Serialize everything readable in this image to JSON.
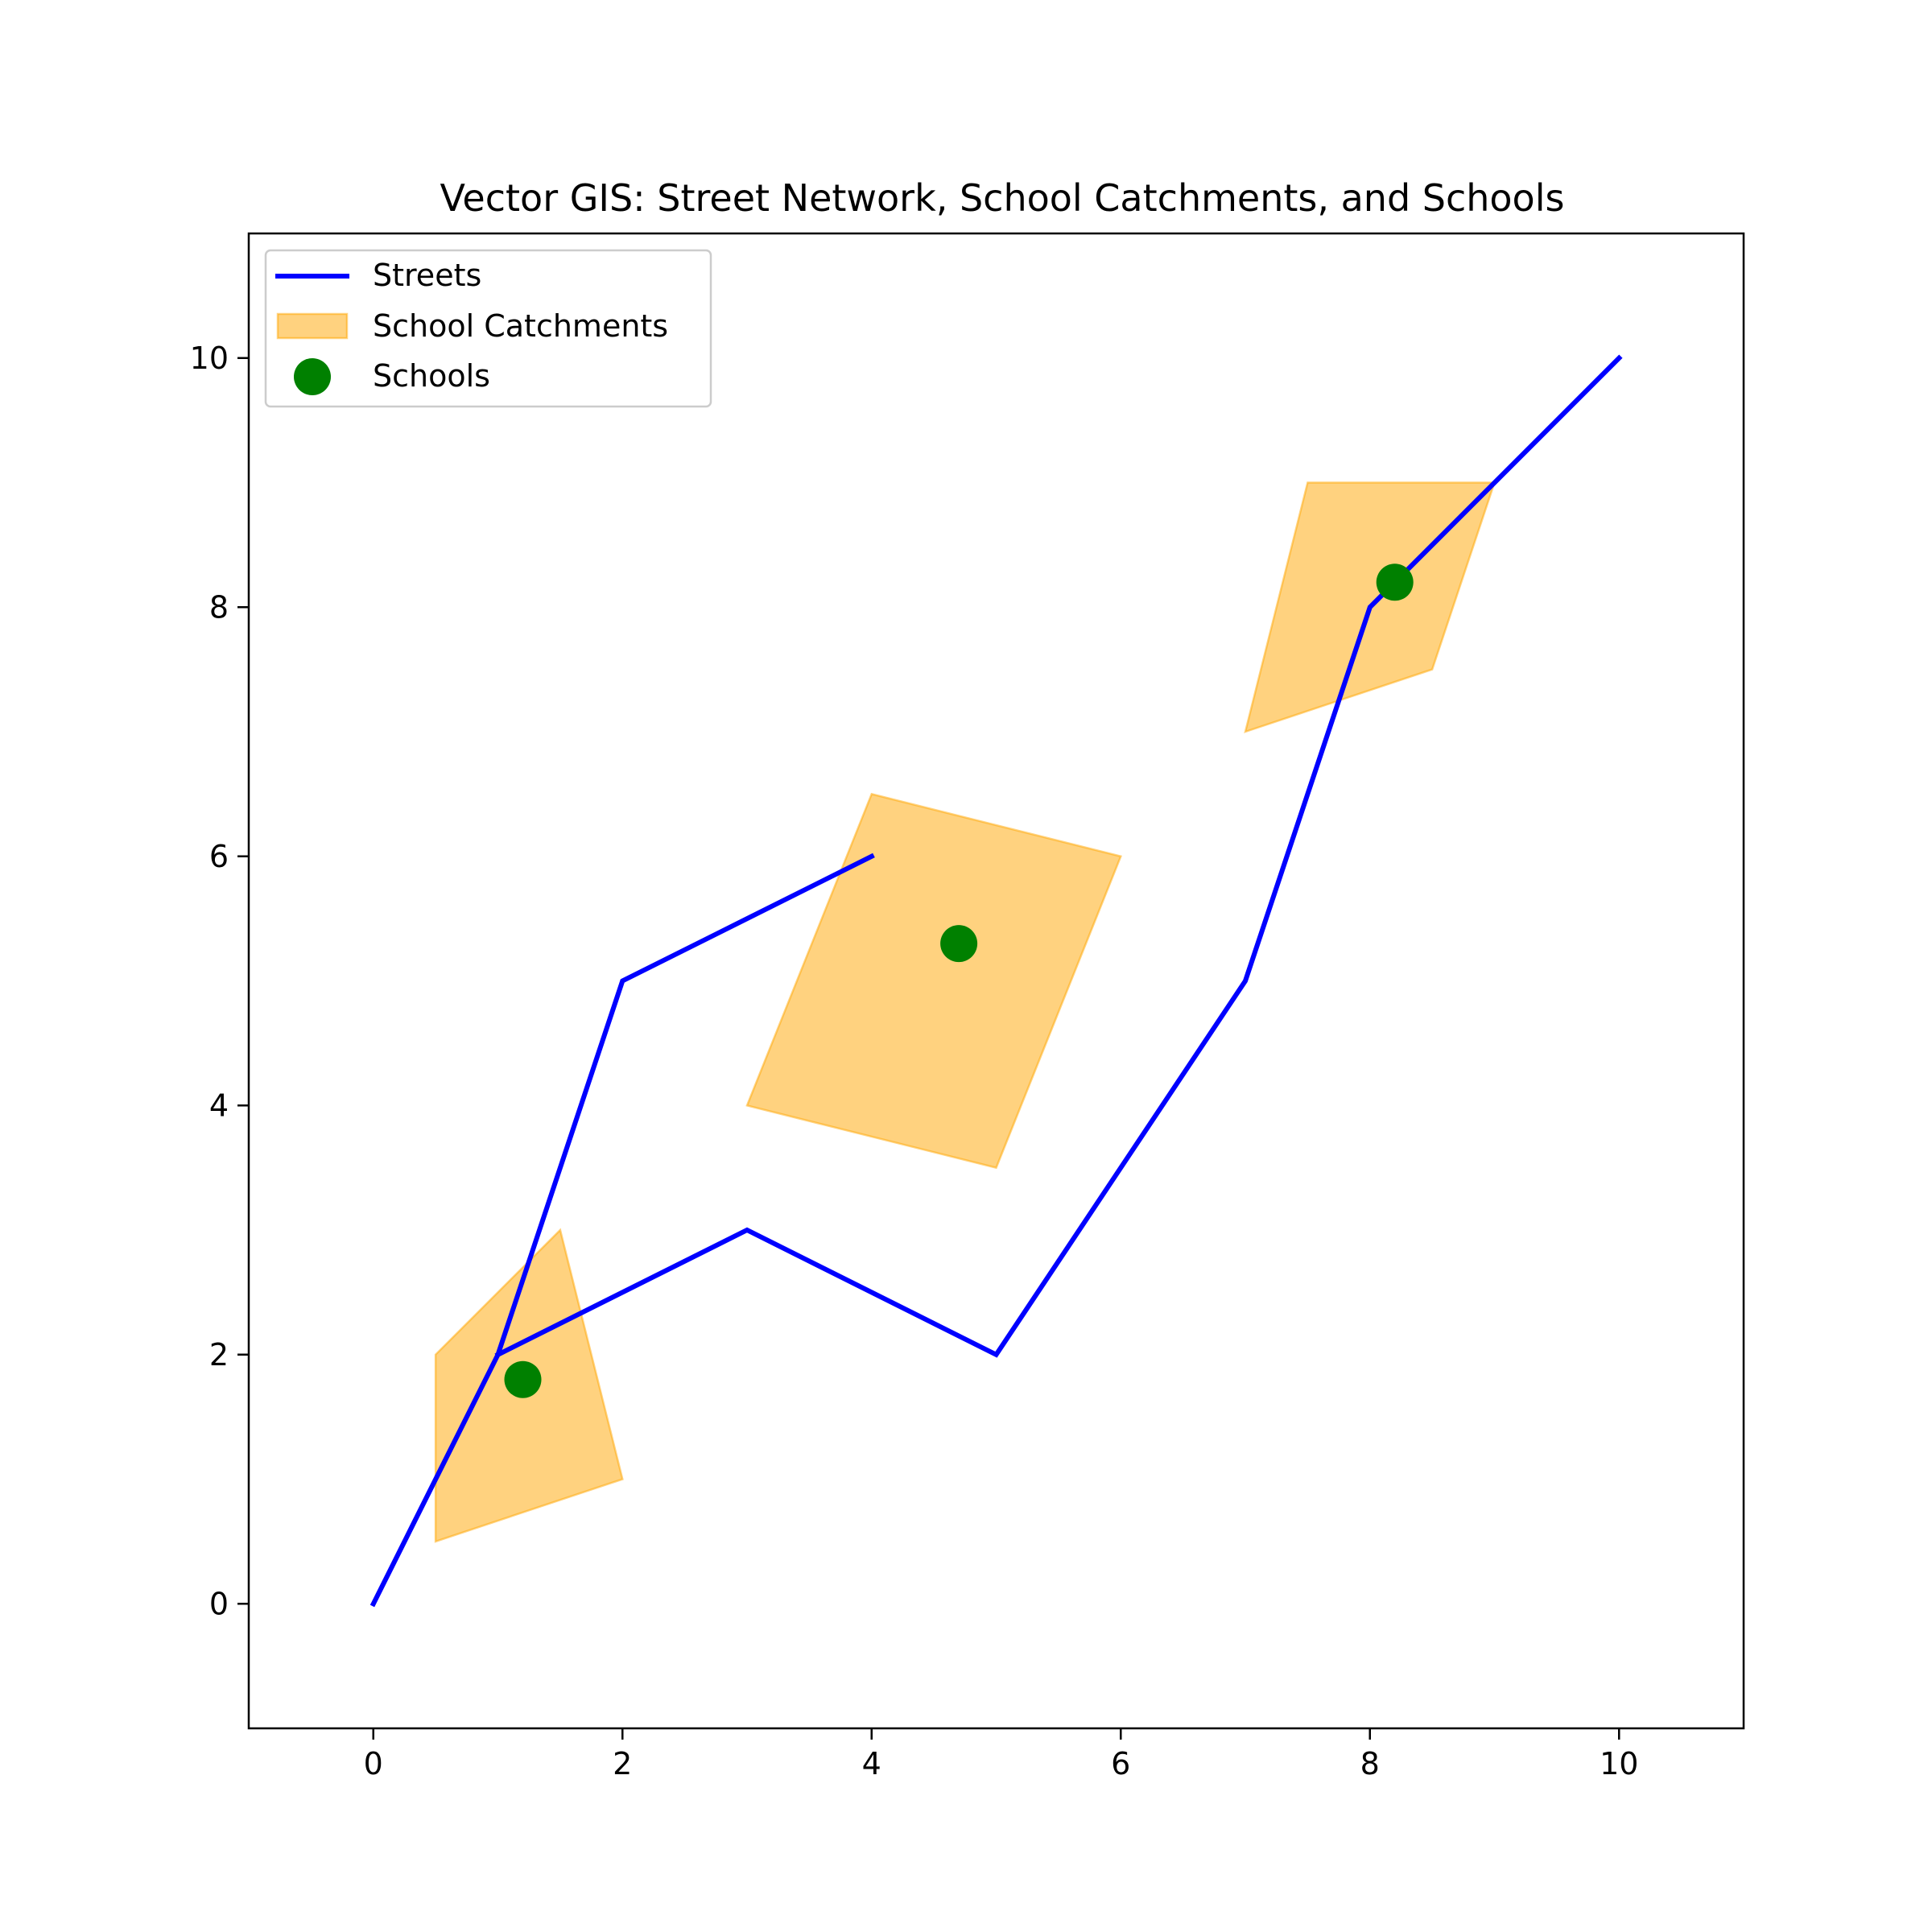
{
  "chart_data": {
    "type": "map",
    "title": "Vector GIS: Street Network, School Catchments, and Schools",
    "xlabel": "",
    "ylabel": "",
    "xlim": [
      -1,
      11
    ],
    "ylim": [
      -1,
      11
    ],
    "x_ticks": [
      0,
      2,
      4,
      6,
      8,
      10
    ],
    "y_ticks": [
      0,
      2,
      4,
      6,
      8,
      10
    ],
    "grid": false,
    "legend_position": "upper-left",
    "colors": {
      "streets": "#0000ff",
      "catchments_fill": "#ffa500",
      "catchments_fill_opacity": 0.5,
      "schools": "#008000",
      "axes": "#000000"
    },
    "series": [
      {
        "name": "Streets",
        "type": "line",
        "lines": [
          [
            [
              0,
              0
            ],
            [
              1,
              2
            ],
            [
              2,
              5
            ],
            [
              4,
              6
            ]
          ],
          [
            [
              1,
              2
            ],
            [
              3,
              3
            ],
            [
              5,
              2
            ],
            [
              7,
              5
            ],
            [
              8,
              8
            ],
            [
              10,
              10
            ]
          ]
        ]
      },
      {
        "name": "School Catchments",
        "type": "polygon",
        "polygons": [
          [
            [
              0.5,
              0.5
            ],
            [
              2,
              1
            ],
            [
              1.5,
              3
            ],
            [
              0.5,
              2
            ]
          ],
          [
            [
              3,
              4
            ],
            [
              5,
              3.5
            ],
            [
              6,
              6
            ],
            [
              4,
              6.5
            ]
          ],
          [
            [
              7,
              7
            ],
            [
              8.5,
              7.5
            ],
            [
              9,
              9
            ],
            [
              7.5,
              9
            ]
          ]
        ]
      },
      {
        "name": "Schools",
        "type": "scatter",
        "points": [
          [
            1.2,
            1.8
          ],
          [
            4.7,
            5.3
          ],
          [
            8.2,
            8.2
          ]
        ]
      }
    ]
  }
}
